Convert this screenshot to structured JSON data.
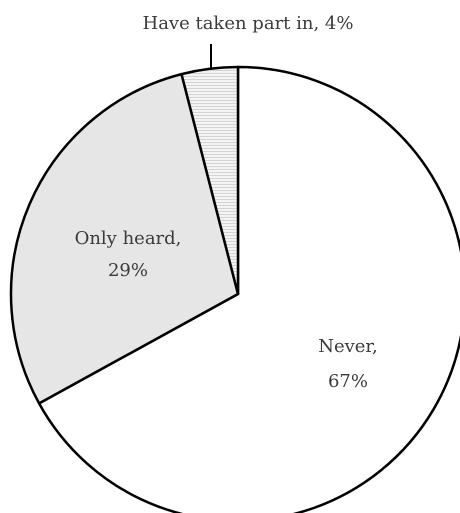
{
  "chart_data": {
    "type": "pie",
    "title": "",
    "slices": [
      {
        "name": "Never",
        "value": 67,
        "label_line1": "Never,",
        "label_line2": "67%",
        "color": "#ffffff"
      },
      {
        "name": "Only heard",
        "value": 29,
        "label_line1": "Only heard,",
        "label_line2": "29%",
        "color": "#e6e6e6"
      },
      {
        "name": "Have taken part in",
        "value": 4,
        "label_line1": "Have taken part in, 4%",
        "label_line2": "",
        "color": "#f4f4f4"
      }
    ],
    "start": "12 o'clock, clockwise",
    "legend": "none",
    "stroke_color": "#000000"
  }
}
